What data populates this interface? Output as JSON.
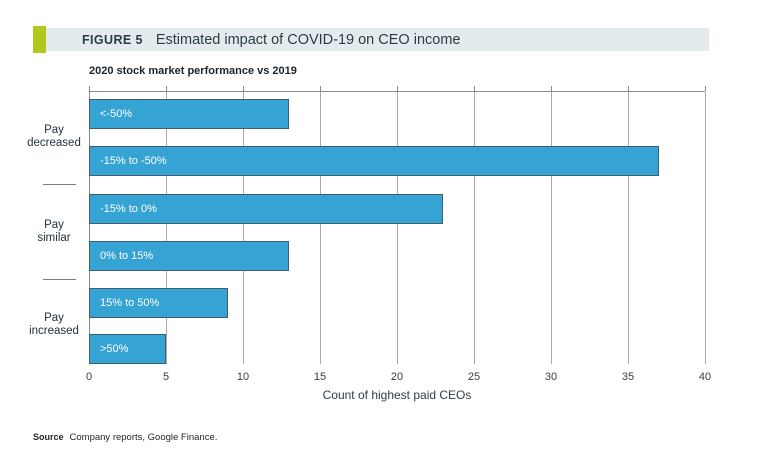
{
  "figure_header": {
    "label": "FIGURE 5",
    "title": "Estimated impact of COVID-19 on CEO income"
  },
  "chart_data": {
    "type": "bar",
    "orientation": "horizontal",
    "title": "2020 stock market performance vs 2019",
    "xlabel": "Count of highest paid CEOs",
    "categories": [
      "<-50%",
      "-15% to -50%",
      "-15% to 0%",
      "0% to 15%",
      "15% to 50%",
      ">50%"
    ],
    "values": [
      13,
      37,
      23,
      13,
      9,
      5
    ],
    "groups": [
      {
        "label_lines": [
          "Pay",
          "decreased"
        ],
        "bar_indexes": [
          0,
          1
        ]
      },
      {
        "label_lines": [
          "Pay",
          "similar"
        ],
        "bar_indexes": [
          2,
          3
        ]
      },
      {
        "label_lines": [
          "Pay",
          "increased"
        ],
        "bar_indexes": [
          4,
          5
        ]
      }
    ],
    "xlim": [
      0,
      40
    ],
    "xticks": [
      0,
      5,
      10,
      15,
      20,
      25,
      30,
      35,
      40
    ],
    "grid": true,
    "bar_label_position": "inside-left",
    "legend": "none"
  },
  "colors": {
    "accent_green": "#b3c71e",
    "header_band": "#e4ebec",
    "bar_fill": "#36a3d5",
    "bar_border": "#3f5e70",
    "gridline": "#a9a9a9",
    "bar_label_text": "#ffffff"
  },
  "source": {
    "label": "Source",
    "text": "Company reports, Google Finance."
  }
}
